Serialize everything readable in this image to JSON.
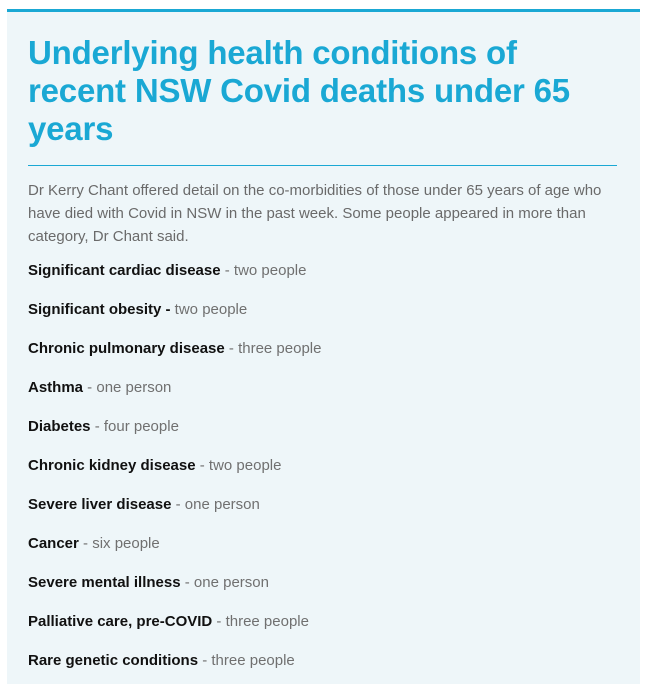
{
  "header": {
    "title": "Underlying health conditions of recent NSW Covid deaths under 65 years"
  },
  "intro": "Dr Kerry Chant offered detail on the co-morbidities of those under 65 years of age who have died with Covid in NSW in the past week. Some people appeared in more than category, Dr Chant said.",
  "conditions": [
    {
      "name": "Significant cardiac disease",
      "count": " - two people"
    },
    {
      "name": "Significant obesity -",
      "count": " two people"
    },
    {
      "name": "Chronic pulmonary disease",
      "count": " - three people"
    },
    {
      "name": "Asthma",
      "count": " - one person"
    },
    {
      "name": "Diabetes",
      "count": " - four people"
    },
    {
      "name": "Chronic kidney disease",
      "count": " - two people"
    },
    {
      "name": "Severe liver disease",
      "count": " - one person"
    },
    {
      "name": "Cancer",
      "count": " - six people"
    },
    {
      "name": "Severe mental illness",
      "count": " - one person"
    },
    {
      "name": "Palliative care, pre-COVID",
      "count": " - three people"
    },
    {
      "name": "Rare genetic conditions",
      "count": " - three people"
    }
  ],
  "colors": {
    "accent": "#1aa8d4",
    "background": "#eef6f9"
  }
}
